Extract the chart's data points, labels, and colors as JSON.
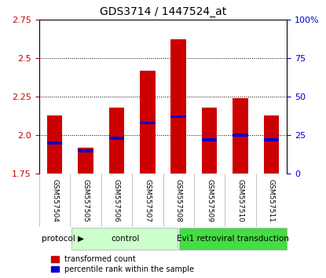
{
  "title": "GDS3714 / 1447524_at",
  "samples": [
    "GSM557504",
    "GSM557505",
    "GSM557506",
    "GSM557507",
    "GSM557508",
    "GSM557509",
    "GSM557510",
    "GSM557511"
  ],
  "transformed_count": [
    2.13,
    1.92,
    2.18,
    2.42,
    2.62,
    2.18,
    2.24,
    2.13
  ],
  "percentile_rank": [
    20,
    15,
    23,
    33,
    37,
    22,
    25,
    22
  ],
  "ymin": 1.75,
  "ymax": 2.75,
  "yticks": [
    1.75,
    2.0,
    2.25,
    2.5,
    2.75
  ],
  "y2min": 0,
  "y2max": 100,
  "y2ticks": [
    0,
    25,
    50,
    75,
    100
  ],
  "protocol_labels": [
    "control",
    "Evi1 retroviral transduction"
  ],
  "protocol_colors": [
    "#b3ffb3",
    "#33cc33"
  ],
  "protocol_groups": [
    4,
    4
  ],
  "bar_color": "#cc0000",
  "blue_color": "#0000cc",
  "bar_width": 0.5,
  "grid_color": "#000000",
  "bg_color": "#ffffff",
  "tick_area_color": "#d0d0d0",
  "left_tick_color": "#cc0000",
  "right_tick_color": "#0000cc"
}
